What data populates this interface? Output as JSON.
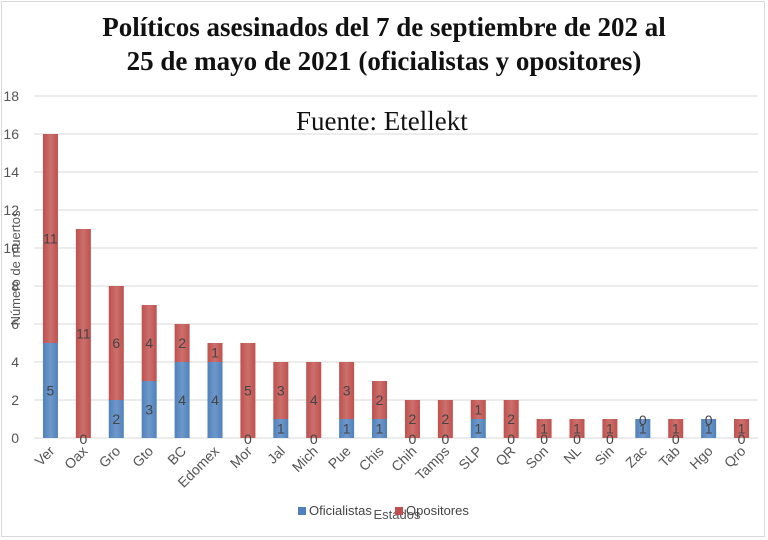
{
  "chart_data": {
    "type": "bar",
    "stacked": true,
    "title_line1": "Políticos asesinados del 7 de septiembre de 202 al",
    "title_line2": "25 de mayo de 2021 (oficialistas y opositores)",
    "source": "Fuente: Etellekt",
    "xlabel": "Estados",
    "ylabel": "Número de muertos",
    "ylim": [
      0,
      18
    ],
    "yticks": [
      0,
      2,
      4,
      6,
      8,
      10,
      12,
      14,
      16,
      18
    ],
    "gridlines": true,
    "legend_position": "bottom",
    "categories": [
      "Ver",
      "Oax",
      "Gro",
      "Gto",
      "BC",
      "Edomex",
      "Mor",
      "Jal",
      "Mich",
      "Pue",
      "Chis",
      "Chih",
      "Tamps",
      "SLP",
      "QR",
      "Son",
      "NL",
      "Sin",
      "Zac",
      "Tab",
      "Hgo",
      "Qro"
    ],
    "series": [
      {
        "name": "Oficialistas",
        "color": "#4f81bd",
        "values": [
          5,
          0,
          2,
          3,
          4,
          4,
          0,
          1,
          0,
          1,
          1,
          0,
          0,
          1,
          0,
          0,
          0,
          0,
          1,
          0,
          1,
          0
        ]
      },
      {
        "name": "Opositores",
        "color": "#c0504d",
        "values": [
          11,
          11,
          6,
          4,
          2,
          1,
          5,
          3,
          4,
          3,
          2,
          2,
          2,
          1,
          2,
          1,
          1,
          1,
          0,
          1,
          0,
          1
        ]
      }
    ]
  }
}
